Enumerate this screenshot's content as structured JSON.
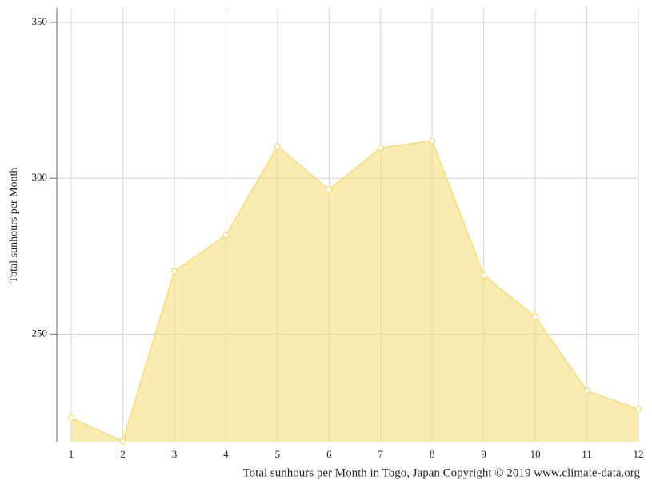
{
  "chart_data": {
    "type": "area",
    "title": "Total sunhours per Month in Togo, Japan Copyright © 2019 www.climate-data.org",
    "y_label": "Total sunhours per Month",
    "x": [
      1,
      2,
      3,
      4,
      5,
      6,
      7,
      8,
      9,
      10,
      11,
      12
    ],
    "series": [
      {
        "name": "Sunhours",
        "color": "#f5dc70",
        "values": [
          223.1,
          215.6,
          270.2,
          281.7,
          310.2,
          296.4,
          309.7,
          312.0,
          268.9,
          255.6,
          231.8,
          226.0
        ]
      }
    ],
    "xlim": [
      0.72,
      12
    ],
    "xticks": [
      1,
      2,
      3,
      4,
      5,
      6,
      7,
      8,
      9,
      10,
      11,
      12
    ],
    "ylim": [
      215.5,
      354.6
    ],
    "yticks": [
      250,
      300,
      350
    ],
    "grid": true
  }
}
